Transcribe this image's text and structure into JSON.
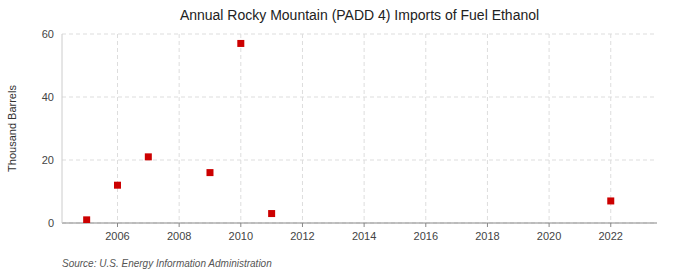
{
  "chart_data": {
    "type": "scatter",
    "title": "Annual Rocky Mountain (PADD 4) Imports of Fuel Ethanol",
    "ylabel": "Thousand Barrels",
    "source": "Source: U.S. Energy Information Administration",
    "x": [
      2005,
      2006,
      2007,
      2009,
      2010,
      2011,
      2022
    ],
    "values": [
      1,
      12,
      21,
      16,
      57,
      3,
      7
    ],
    "color": "#cc0000",
    "marker": "square",
    "xlim": [
      2004.2,
      2023.5
    ],
    "ylim": [
      0,
      60
    ],
    "xticks": [
      2006,
      2008,
      2010,
      2012,
      2014,
      2016,
      2018,
      2020,
      2022
    ],
    "yticks": [
      0,
      20,
      40,
      60
    ],
    "grid": true
  }
}
